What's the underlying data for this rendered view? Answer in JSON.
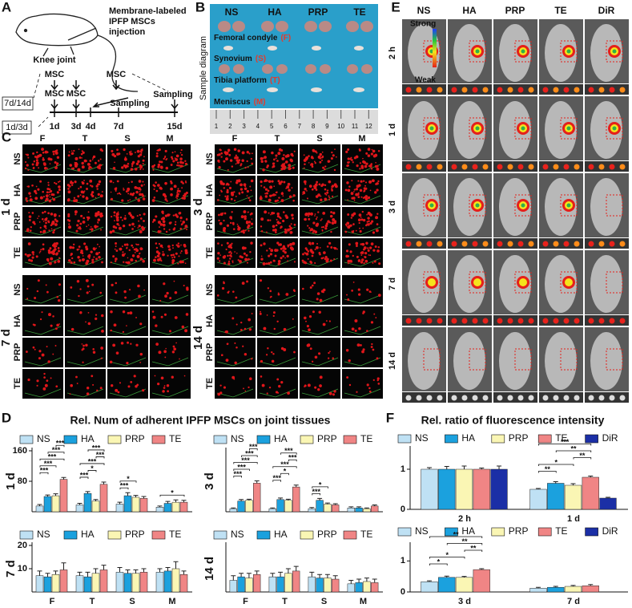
{
  "panel_a": {
    "label": "A",
    "injection": [
      "Membrane-labeled",
      "IPFP MSCs",
      "injection"
    ],
    "joint": "Knee joint",
    "groups": [
      "7d/14d",
      "1d/3d"
    ],
    "msc": [
      "MSC",
      "MSC",
      "MSC",
      "MSC"
    ],
    "sampling": [
      "Sampling",
      "Sampling"
    ],
    "days": [
      "1d",
      "3d",
      "4d",
      "7d",
      "15d"
    ]
  },
  "panel_b": {
    "label": "B",
    "groups": [
      "NS",
      "HA",
      "PRP",
      "TE"
    ],
    "side": "Sample diagram",
    "tissues": [
      "Femoral condyle",
      "Synovium",
      "Tibia platform",
      "Meniscus"
    ],
    "codes": [
      "(F)",
      "(S)",
      "(T)",
      "(M)"
    ],
    "ruler": [
      1,
      2,
      3,
      4,
      5,
      6,
      7,
      8,
      9,
      10,
      11,
      12
    ]
  },
  "panel_c": {
    "label": "C",
    "tissues": [
      "F",
      "T",
      "S",
      "M"
    ],
    "groups": [
      "NS",
      "HA",
      "PRP",
      "TE"
    ],
    "times": [
      "1 d",
      "3 d",
      "7 d",
      "14 d"
    ]
  },
  "panel_e": {
    "label": "E",
    "groups": [
      "NS",
      "HA",
      "PRP",
      "TE",
      "DiR"
    ],
    "times": [
      "2 h",
      "1 d",
      "3 d",
      "7 d",
      "14 d"
    ],
    "scale": [
      "Strong",
      "Weak"
    ]
  },
  "panel_d": {
    "label": "D",
    "title": "Rel. Num of adherent IPFP MSCs on joint tissues"
  },
  "panel_f": {
    "label": "F",
    "title": "Rel. ratio of fluorescence intensity"
  },
  "chart_data": [
    {
      "type": "bar",
      "title": "1 d",
      "categories": [
        null,
        null,
        null,
        null
      ],
      "ylim": [
        0,
        160
      ],
      "yticks": [
        80,
        160
      ],
      "series": [
        {
          "name": "NS",
          "color": "#bfe1f4",
          "values": [
            15,
            18,
            20,
            12
          ],
          "errors": [
            4,
            4,
            5,
            3
          ]
        },
        {
          "name": "HA",
          "color": "#1ba1de",
          "values": [
            40,
            48,
            42,
            22
          ],
          "errors": [
            4,
            5,
            8,
            5
          ]
        },
        {
          "name": "PRP",
          "color": "#faf6b4",
          "values": [
            42,
            28,
            38,
            25
          ],
          "errors": [
            5,
            4,
            5,
            6
          ]
        },
        {
          "name": "TE",
          "color": "#f08585",
          "values": [
            85,
            72,
            35,
            25
          ],
          "errors": [
            5,
            6,
            5,
            5
          ]
        }
      ],
      "annotations": [
        "***",
        "***",
        "***",
        "***",
        "***",
        "***",
        "*",
        "***",
        "***",
        "***",
        "***",
        "*",
        "*"
      ]
    },
    {
      "type": "bar",
      "title": "3 d",
      "categories": [
        null,
        null,
        null,
        null
      ],
      "ylim": [
        0,
        160
      ],
      "series": [
        {
          "name": "NS",
          "color": "#bfe1f4",
          "values": [
            8,
            8,
            8,
            10
          ],
          "errors": [
            2,
            2,
            3,
            3
          ]
        },
        {
          "name": "HA",
          "color": "#1ba1de",
          "values": [
            28,
            32,
            30,
            10
          ],
          "errors": [
            4,
            4,
            5,
            3
          ]
        },
        {
          "name": "PRP",
          "color": "#faf6b4",
          "values": [
            30,
            30,
            20,
            8
          ],
          "errors": [
            3,
            3,
            3,
            2
          ]
        },
        {
          "name": "TE",
          "color": "#f08585",
          "values": [
            75,
            65,
            18,
            15
          ],
          "errors": [
            6,
            5,
            3,
            3
          ]
        }
      ],
      "annotations": [
        "***",
        "***",
        "***",
        "***",
        "***",
        "***",
        "*",
        "***",
        "***",
        "***",
        "***",
        "*"
      ]
    },
    {
      "type": "bar",
      "title": "7 d",
      "categories": [
        "F",
        "T",
        "S",
        "M"
      ],
      "ylim": [
        0,
        20
      ],
      "yticks": [
        10,
        20
      ],
      "series": [
        {
          "name": "NS",
          "color": "#bfe1f4",
          "values": [
            7,
            7,
            8.5,
            8.5
          ],
          "errors": [
            2,
            1.5,
            2,
            1.5
          ]
        },
        {
          "name": "HA",
          "color": "#1ba1de",
          "values": [
            6.5,
            6.5,
            8,
            9
          ],
          "errors": [
            1.5,
            2,
            1.5,
            1.5
          ]
        },
        {
          "name": "PRP",
          "color": "#faf6b4",
          "values": [
            7.5,
            8,
            8,
            10
          ],
          "errors": [
            1.5,
            2,
            1.5,
            3
          ]
        },
        {
          "name": "TE",
          "color": "#f08585",
          "values": [
            9.5,
            9.5,
            8.5,
            7.5
          ],
          "errors": [
            3,
            2,
            1.5,
            1.5
          ]
        }
      ]
    },
    {
      "type": "bar",
      "title": "14 d",
      "categories": [
        "F",
        "T",
        "S",
        "M"
      ],
      "ylim": [
        0,
        20
      ],
      "series": [
        {
          "name": "NS",
          "color": "#bfe1f4",
          "values": [
            5,
            6.5,
            6.5,
            3.5
          ],
          "errors": [
            2,
            1.5,
            2,
            1.5
          ]
        },
        {
          "name": "HA",
          "color": "#1ba1de",
          "values": [
            6.5,
            6.5,
            6,
            4
          ],
          "errors": [
            1.5,
            2,
            1.5,
            1.5
          ]
        },
        {
          "name": "PRP",
          "color": "#faf6b4",
          "values": [
            6,
            8,
            6,
            4.5
          ],
          "errors": [
            2,
            2,
            1.5,
            1.5
          ]
        },
        {
          "name": "TE",
          "color": "#f08585",
          "values": [
            7.5,
            9,
            5.5,
            4
          ],
          "errors": [
            1.5,
            2,
            1.5,
            1.5
          ]
        }
      ]
    },
    {
      "type": "bar",
      "categories": [
        "2 h",
        "1 d"
      ],
      "ylim": [
        0,
        1.5
      ],
      "yticks": [
        0,
        1
      ],
      "series": [
        {
          "name": "NS",
          "color": "#bfe1f4",
          "values": [
            1.0,
            0.5
          ],
          "errors": [
            0.04,
            0.02
          ]
        },
        {
          "name": "HA",
          "color": "#1ba1de",
          "values": [
            1.0,
            0.65
          ],
          "errors": [
            0.07,
            0.04
          ]
        },
        {
          "name": "PRP",
          "color": "#faf6b4",
          "values": [
            1.0,
            0.6
          ],
          "errors": [
            0.08,
            0.04
          ]
        },
        {
          "name": "TE",
          "color": "#f08585",
          "values": [
            1.0,
            0.8
          ],
          "errors": [
            0.03,
            0.03
          ]
        },
        {
          "name": "DiR",
          "color": "#1b2fa6",
          "values": [
            1.0,
            0.28
          ],
          "errors": [
            0.08,
            0.02
          ]
        }
      ],
      "annotations": [
        "**",
        "*",
        "**",
        "**",
        "***"
      ]
    },
    {
      "type": "bar",
      "categories": [
        "3 d",
        "7 d"
      ],
      "ylim": [
        0,
        1.5
      ],
      "yticks": [
        0,
        1
      ],
      "series": [
        {
          "name": "NS",
          "color": "#bfe1f4",
          "values": [
            0.33,
            0.12
          ],
          "errors": [
            0.03,
            0.03
          ]
        },
        {
          "name": "HA",
          "color": "#1ba1de",
          "values": [
            0.47,
            0.15
          ],
          "errors": [
            0.04,
            0.03
          ]
        },
        {
          "name": "PRP",
          "color": "#faf6b4",
          "values": [
            0.47,
            0.18
          ],
          "errors": [
            0.03,
            0.03
          ]
        },
        {
          "name": "TE",
          "color": "#f08585",
          "values": [
            0.72,
            0.2
          ],
          "errors": [
            0.03,
            0.04
          ]
        },
        {
          "name": "DiR",
          "color": "#1b2fa6",
          "values": [
            null,
            null
          ],
          "errors": [
            null,
            null
          ]
        }
      ],
      "annotations": [
        "*",
        "*",
        "**",
        "**",
        "**"
      ]
    }
  ]
}
